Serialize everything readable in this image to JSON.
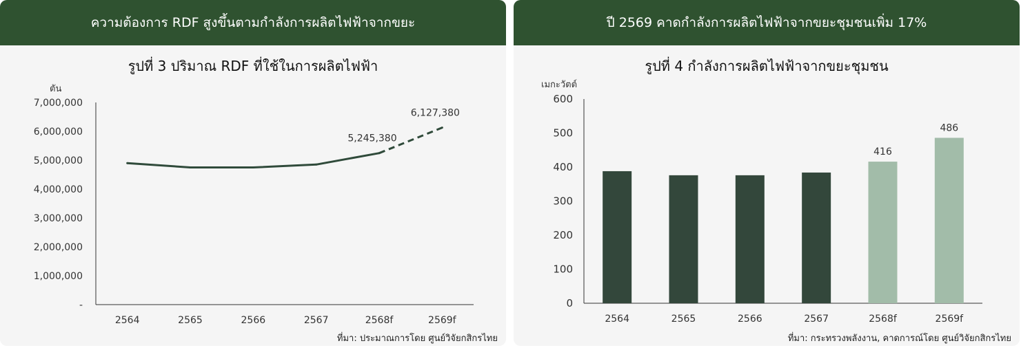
{
  "left": {
    "header": "ความต้องการ RDF สูงขึ้นตามกำลังการผลิตไฟฟ้าจากขยะ",
    "unit": "ตัน",
    "source": "ที่มา: ประมาณการโดย ศูนย์วิจัยกสิกรไทย"
  },
  "right": {
    "header": "ปี 2569 คาดกำลังการผลิตไฟฟ้าจากขยะชุมชนเพิ่ม 17%",
    "unit": "เมกะวัตต์",
    "source": "ที่มา: กระทรวงพลังงาน, คาดการณ์โดย ศูนย์วิจัยกสิกรไทย"
  },
  "colors": {
    "header_bg": "#2f5230",
    "panel_bg": "#f5f5f5",
    "line": "#2f4a3a",
    "bar_actual": "#33473b",
    "bar_forecast": "#a2bca9"
  },
  "chart_data": [
    {
      "type": "line",
      "title": "รูปที่ 3 ปริมาณ RDF ที่ใช้ในการผลิตไฟฟ้า",
      "ylabel": "ตัน",
      "categories": [
        "2564",
        "2565",
        "2566",
        "2567",
        "2568f",
        "2569f"
      ],
      "values": [
        4900000,
        4750000,
        4750000,
        4850000,
        5245380,
        6127380
      ],
      "data_labels": [
        "",
        "",
        "",
        "",
        "5,245,380",
        "6,127,380"
      ],
      "yticks": [
        "-",
        "1,000,000",
        "2,000,000",
        "3,000,000",
        "4,000,000",
        "5,000,000",
        "6,000,000",
        "7,000,000"
      ],
      "ylim": [
        0,
        7000000
      ],
      "forecast_from_index": 4,
      "grid": false
    },
    {
      "type": "bar",
      "title": "รูปที่ 4 กำลังการผลิตไฟฟ้าจากขยะชุมชน",
      "ylabel": "เมกะวัตต์",
      "categories": [
        "2564",
        "2565",
        "2566",
        "2567",
        "2568f",
        "2569f"
      ],
      "values": [
        388,
        376,
        376,
        384,
        416,
        486
      ],
      "data_labels": [
        "",
        "",
        "",
        "",
        "416",
        "486"
      ],
      "forecast": [
        false,
        false,
        false,
        false,
        true,
        true
      ],
      "yticks": [
        "0",
        "100",
        "200",
        "300",
        "400",
        "500",
        "600"
      ],
      "ylim": [
        0,
        600
      ],
      "grid": false
    }
  ]
}
